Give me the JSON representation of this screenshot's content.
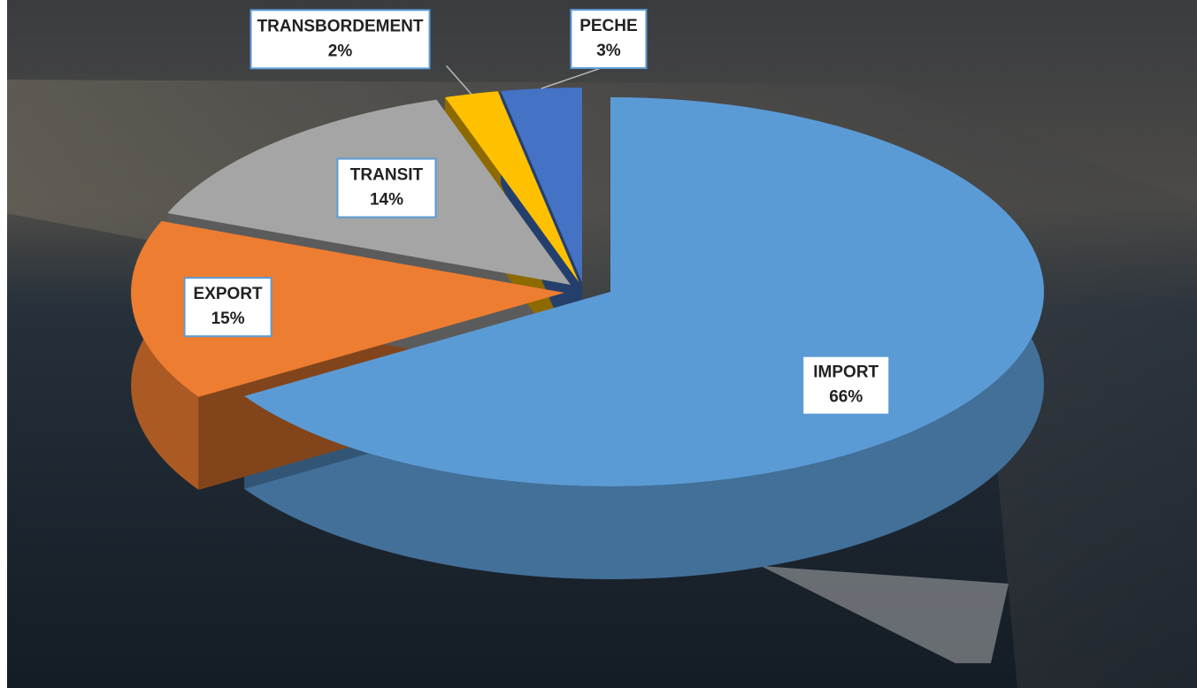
{
  "chart_data": {
    "type": "pie3d",
    "categories": [
      "IMPORT",
      "EXPORT",
      "TRANSIT",
      "TRANSBORDEMENT",
      "PECHE"
    ],
    "values": [
      66,
      15,
      14,
      2,
      3
    ],
    "value_labels": [
      "66%",
      "15%",
      "14%",
      "2%",
      "3%"
    ],
    "colors": [
      "#5b9bd5",
      "#ed7d31",
      "#a5a5a5",
      "#ffc000",
      "#4472c4"
    ]
  }
}
